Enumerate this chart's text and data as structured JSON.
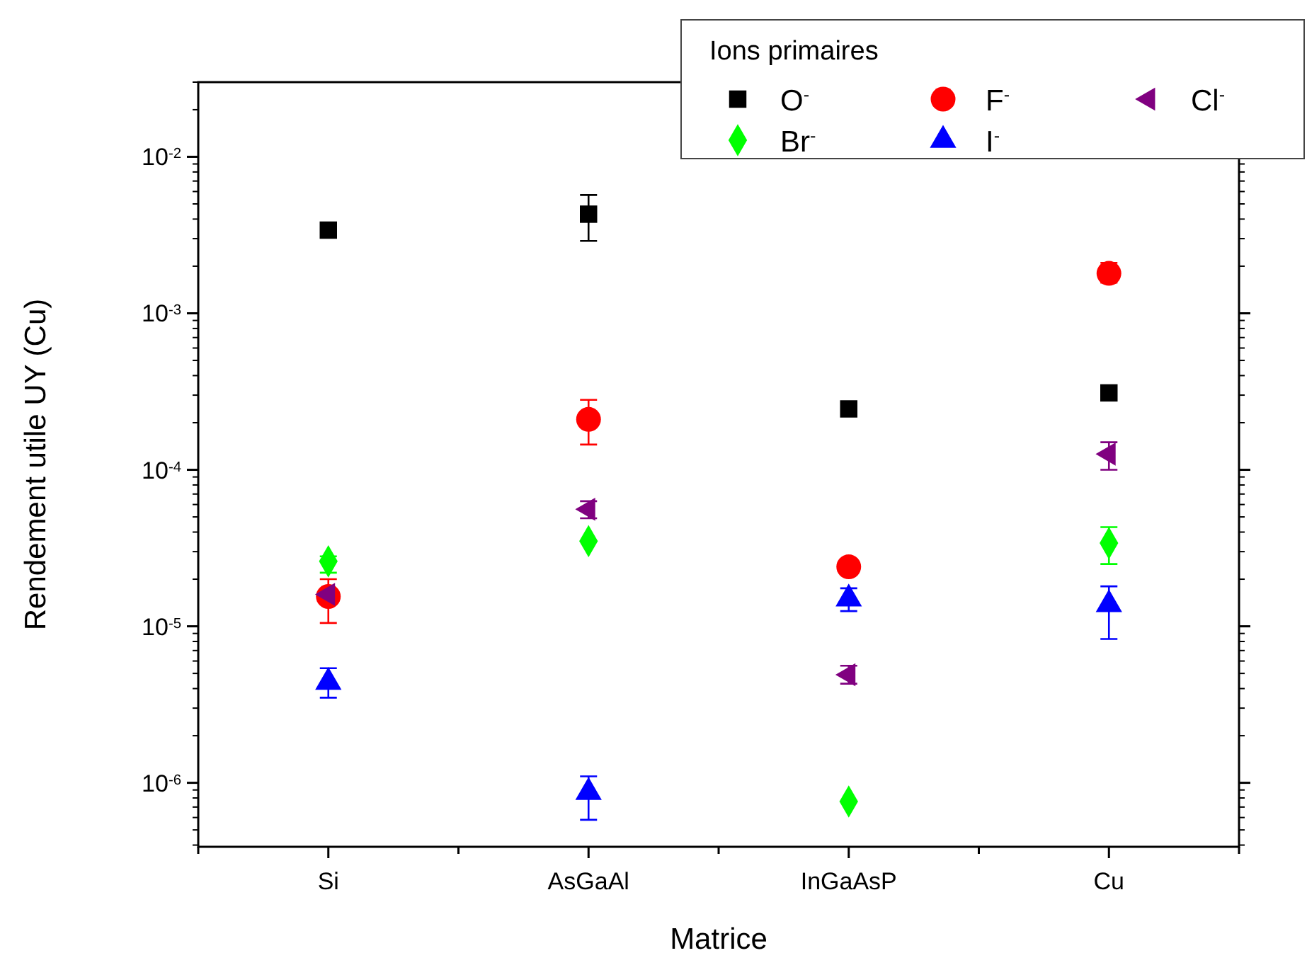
{
  "chart_data": {
    "type": "scatter",
    "xlabel": "Matrice",
    "ylabel": "Rendement utile UY (Cu)",
    "legend_title": "Ions primaires",
    "legend": "top right",
    "log": "y",
    "categories": [
      "Si",
      "AsGaAl",
      "InGaAsP",
      "Cu"
    ],
    "ylim": [
      3.9e-07,
      0.03
    ],
    "yticks": [
      {
        "value": 1e-06,
        "label": "10$^{-6}$"
      },
      {
        "value": 1e-05,
        "label": "10$^{-5}$"
      },
      {
        "value": 0.0001,
        "label": "10$^{-4}$"
      },
      {
        "value": 0.001,
        "label": "10$^{-3}$"
      },
      {
        "value": 0.01,
        "label": "10$^{-2}$"
      }
    ],
    "series": [
      {
        "name": "O$^{-}$",
        "color": "#000000",
        "marker": "square",
        "values": [
          0.0034,
          0.0043,
          0.000245,
          0.00031
        ],
        "errors": [
          null,
          [
            0.0029,
            0.0057
          ],
          null,
          null
        ]
      },
      {
        "name": "F$^{-}$",
        "color": "#ff0000",
        "marker": "circle",
        "values": [
          1.55e-05,
          0.00021,
          2.4e-05,
          0.0018
        ],
        "errors": [
          [
            1.05e-05,
            2e-05
          ],
          [
            0.000145,
            0.00028
          ],
          null,
          [
            0.00157,
            0.0021
          ]
        ]
      },
      {
        "name": "Cl$^{-}$",
        "color": "#800080",
        "marker": "triangle-left",
        "values": [
          1.6e-05,
          5.6e-05,
          4.9e-06,
          0.000126
        ],
        "errors": [
          null,
          [
            4.9e-05,
            6.3e-05
          ],
          [
            4.3e-06,
            5.6e-06
          ],
          [
            0.0001,
            0.00015
          ]
        ]
      },
      {
        "name": "Br$^{-}$",
        "color": "#00ff00",
        "marker": "diamond",
        "values": [
          2.6e-05,
          3.5e-05,
          7.6e-07,
          3.4e-05
        ],
        "errors": [
          [
            2.2e-05,
            2.8e-05
          ],
          null,
          null,
          [
            2.5e-05,
            4.3e-05
          ]
        ]
      },
      {
        "name": "I$^{-}$",
        "color": "#0000ff",
        "marker": "triangle",
        "values": [
          4.4e-06,
          8.7e-07,
          1.5e-05,
          1.38e-05
        ],
        "errors": [
          [
            3.5e-06,
            5.4e-06
          ],
          [
            5.8e-07,
            1.1e-06
          ],
          [
            1.25e-05,
            1.75e-05
          ],
          [
            8.3e-06,
            1.8e-05
          ]
        ]
      }
    ]
  }
}
